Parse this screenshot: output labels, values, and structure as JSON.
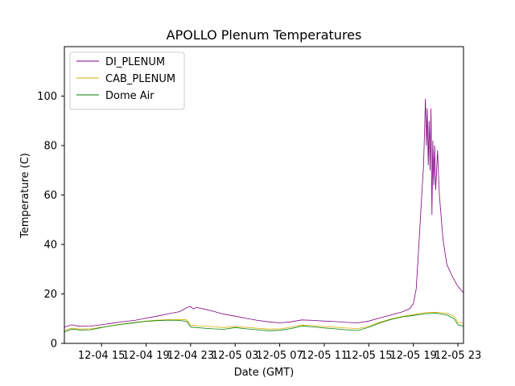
{
  "chart_data": {
    "type": "line",
    "title": "APOLLO Plenum Temperatures",
    "xlabel": "Date (GMT)",
    "ylabel": "Temperature (C)",
    "xlim": [
      "2024-12-04 11:40",
      "2024-12-05 23:30"
    ],
    "ylim": [
      0,
      120
    ],
    "x_ticks": [
      {
        "at": "2024-12-04 15:00",
        "label": "12-04 15"
      },
      {
        "at": "2024-12-04 19:00",
        "label": "12-04 19"
      },
      {
        "at": "2024-12-04 23:00",
        "label": "12-04 23"
      },
      {
        "at": "2024-12-05 03:00",
        "label": "12-05 03"
      },
      {
        "at": "2024-12-05 07:00",
        "label": "12-05 07"
      },
      {
        "at": "2024-12-05 11:00",
        "label": "12-05 11"
      },
      {
        "at": "2024-12-05 15:00",
        "label": "12-05 15"
      },
      {
        "at": "2024-12-05 19:00",
        "label": "12-05 19"
      },
      {
        "at": "2024-12-05 23:00",
        "label": "12-05 23"
      }
    ],
    "y_ticks": [
      0,
      20,
      40,
      60,
      80,
      100
    ],
    "grid": false,
    "legend_position": "top-left",
    "series": [
      {
        "name": "DI_PLENUM",
        "color": "#800080",
        "points": [
          [
            "2024-12-04 11:40",
            6.6
          ],
          [
            "2024-12-04 12:20",
            7.5
          ],
          [
            "2024-12-04 13:00",
            6.9
          ],
          [
            "2024-12-04 14:00",
            7.0
          ],
          [
            "2024-12-04 15:00",
            7.5
          ],
          [
            "2024-12-04 16:00",
            8.2
          ],
          [
            "2024-12-04 17:00",
            8.8
          ],
          [
            "2024-12-04 18:00",
            9.3
          ],
          [
            "2024-12-04 19:00",
            10.2
          ],
          [
            "2024-12-04 20:00",
            11.0
          ],
          [
            "2024-12-04 21:00",
            12.0
          ],
          [
            "2024-12-04 22:00",
            12.8
          ],
          [
            "2024-12-04 22:40",
            14.5
          ],
          [
            "2024-12-04 23:00",
            14.9
          ],
          [
            "2024-12-04 23:15",
            13.9
          ],
          [
            "2024-12-04 23:30",
            14.5
          ],
          [
            "2024-12-05 00:00",
            14.1
          ],
          [
            "2024-12-05 01:00",
            13.0
          ],
          [
            "2024-12-05 02:00",
            11.8
          ],
          [
            "2024-12-05 03:00",
            11.0
          ],
          [
            "2024-12-05 04:00",
            10.1
          ],
          [
            "2024-12-05 05:00",
            9.3
          ],
          [
            "2024-12-05 06:00",
            8.7
          ],
          [
            "2024-12-05 07:00",
            8.3
          ],
          [
            "2024-12-05 08:00",
            8.7
          ],
          [
            "2024-12-05 09:00",
            9.5
          ],
          [
            "2024-12-05 10:00",
            9.3
          ],
          [
            "2024-12-05 11:00",
            9.0
          ],
          [
            "2024-12-05 12:00",
            8.8
          ],
          [
            "2024-12-05 13:00",
            8.5
          ],
          [
            "2024-12-05 14:00",
            8.3
          ],
          [
            "2024-12-05 15:00",
            9.0
          ],
          [
            "2024-12-05 16:00",
            10.3
          ],
          [
            "2024-12-05 17:00",
            11.5
          ],
          [
            "2024-12-05 18:00",
            12.7
          ],
          [
            "2024-12-05 18:40",
            14.0
          ],
          [
            "2024-12-05 19:00",
            16.0
          ],
          [
            "2024-12-05 19:15",
            22.0
          ],
          [
            "2024-12-05 19:30",
            40.0
          ],
          [
            "2024-12-05 19:45",
            60.0
          ],
          [
            "2024-12-05 19:55",
            72.0
          ],
          [
            "2024-12-05 20:05",
            99.0
          ],
          [
            "2024-12-05 20:10",
            80.0
          ],
          [
            "2024-12-05 20:15",
            95.0
          ],
          [
            "2024-12-05 20:20",
            72.0
          ],
          [
            "2024-12-05 20:25",
            90.0
          ],
          [
            "2024-12-05 20:30",
            70.0
          ],
          [
            "2024-12-05 20:35",
            95.0
          ],
          [
            "2024-12-05 20:40",
            52.0
          ],
          [
            "2024-12-05 20:45",
            82.0
          ],
          [
            "2024-12-05 20:50",
            64.0
          ],
          [
            "2024-12-05 20:55",
            80.0
          ],
          [
            "2024-12-05 21:00",
            62.0
          ],
          [
            "2024-12-05 21:10",
            78.0
          ],
          [
            "2024-12-05 21:20",
            60.0
          ],
          [
            "2024-12-05 21:40",
            42.0
          ],
          [
            "2024-12-05 22:00",
            32.0
          ],
          [
            "2024-12-05 22:30",
            27.0
          ],
          [
            "2024-12-05 23:00",
            23.0
          ],
          [
            "2024-12-05 23:30",
            20.5
          ]
        ]
      },
      {
        "name": "CAB_PLENUM",
        "color": "#d4b000",
        "points": [
          [
            "2024-12-04 11:40",
            5.2
          ],
          [
            "2024-12-04 12:20",
            6.2
          ],
          [
            "2024-12-04 13:00",
            5.8
          ],
          [
            "2024-12-04 14:00",
            5.9
          ],
          [
            "2024-12-04 15:00",
            6.5
          ],
          [
            "2024-12-04 16:00",
            7.3
          ],
          [
            "2024-12-04 17:00",
            7.9
          ],
          [
            "2024-12-04 18:00",
            8.5
          ],
          [
            "2024-12-04 19:00",
            9.0
          ],
          [
            "2024-12-04 20:00",
            9.4
          ],
          [
            "2024-12-04 21:00",
            9.6
          ],
          [
            "2024-12-04 22:00",
            9.7
          ],
          [
            "2024-12-04 22:40",
            9.5
          ],
          [
            "2024-12-04 23:00",
            7.4
          ],
          [
            "2024-12-05 00:00",
            7.0
          ],
          [
            "2024-12-05 01:00",
            6.8
          ],
          [
            "2024-12-05 02:00",
            6.4
          ],
          [
            "2024-12-05 03:00",
            6.9
          ],
          [
            "2024-12-05 04:00",
            6.5
          ],
          [
            "2024-12-05 05:00",
            6.1
          ],
          [
            "2024-12-05 06:00",
            5.8
          ],
          [
            "2024-12-05 07:00",
            5.9
          ],
          [
            "2024-12-05 08:00",
            6.5
          ],
          [
            "2024-12-05 09:00",
            7.4
          ],
          [
            "2024-12-05 10:00",
            7.2
          ],
          [
            "2024-12-05 11:00",
            6.8
          ],
          [
            "2024-12-05 12:00",
            6.5
          ],
          [
            "2024-12-05 13:00",
            6.2
          ],
          [
            "2024-12-05 14:00",
            6.0
          ],
          [
            "2024-12-05 15:00",
            7.0
          ],
          [
            "2024-12-05 16:00",
            8.6
          ],
          [
            "2024-12-05 17:00",
            9.9
          ],
          [
            "2024-12-05 18:00",
            10.9
          ],
          [
            "2024-12-05 19:00",
            11.6
          ],
          [
            "2024-12-05 20:00",
            12.4
          ],
          [
            "2024-12-05 21:00",
            12.6
          ],
          [
            "2024-12-05 22:00",
            12.2
          ],
          [
            "2024-12-05 22:40",
            11.0
          ],
          [
            "2024-12-05 23:00",
            8.5
          ],
          [
            "2024-12-05 23:30",
            8.0
          ]
        ]
      },
      {
        "name": "Dome Air",
        "color": "#008000",
        "points": [
          [
            "2024-12-04 11:40",
            4.6
          ],
          [
            "2024-12-04 12:20",
            5.8
          ],
          [
            "2024-12-04 13:00",
            5.4
          ],
          [
            "2024-12-04 14:00",
            5.5
          ],
          [
            "2024-12-04 15:00",
            6.4
          ],
          [
            "2024-12-04 16:00",
            7.2
          ],
          [
            "2024-12-04 17:00",
            7.8
          ],
          [
            "2024-12-04 18:00",
            8.4
          ],
          [
            "2024-12-04 19:00",
            8.9
          ],
          [
            "2024-12-04 20:00",
            9.2
          ],
          [
            "2024-12-04 21:00",
            9.4
          ],
          [
            "2024-12-04 22:00",
            9.3
          ],
          [
            "2024-12-04 22:40",
            8.8
          ],
          [
            "2024-12-04 23:00",
            6.6
          ],
          [
            "2024-12-05 00:00",
            6.2
          ],
          [
            "2024-12-05 01:00",
            5.9
          ],
          [
            "2024-12-05 02:00",
            5.7
          ],
          [
            "2024-12-05 03:00",
            6.4
          ],
          [
            "2024-12-05 04:00",
            5.9
          ],
          [
            "2024-12-05 05:00",
            5.5
          ],
          [
            "2024-12-05 06:00",
            5.1
          ],
          [
            "2024-12-05 07:00",
            5.3
          ],
          [
            "2024-12-05 08:00",
            6.0
          ],
          [
            "2024-12-05 09:00",
            7.0
          ],
          [
            "2024-12-05 10:00",
            6.7
          ],
          [
            "2024-12-05 11:00",
            6.2
          ],
          [
            "2024-12-05 12:00",
            5.9
          ],
          [
            "2024-12-05 13:00",
            5.5
          ],
          [
            "2024-12-05 14:00",
            5.2
          ],
          [
            "2024-12-05 15:00",
            6.5
          ],
          [
            "2024-12-05 16:00",
            8.3
          ],
          [
            "2024-12-05 17:00",
            9.7
          ],
          [
            "2024-12-05 18:00",
            10.7
          ],
          [
            "2024-12-05 19:00",
            11.3
          ],
          [
            "2024-12-05 20:00",
            12.0
          ],
          [
            "2024-12-05 21:00",
            12.2
          ],
          [
            "2024-12-05 22:00",
            11.5
          ],
          [
            "2024-12-05 22:40",
            10.0
          ],
          [
            "2024-12-05 23:00",
            7.5
          ],
          [
            "2024-12-05 23:30",
            7.0
          ]
        ]
      }
    ]
  }
}
